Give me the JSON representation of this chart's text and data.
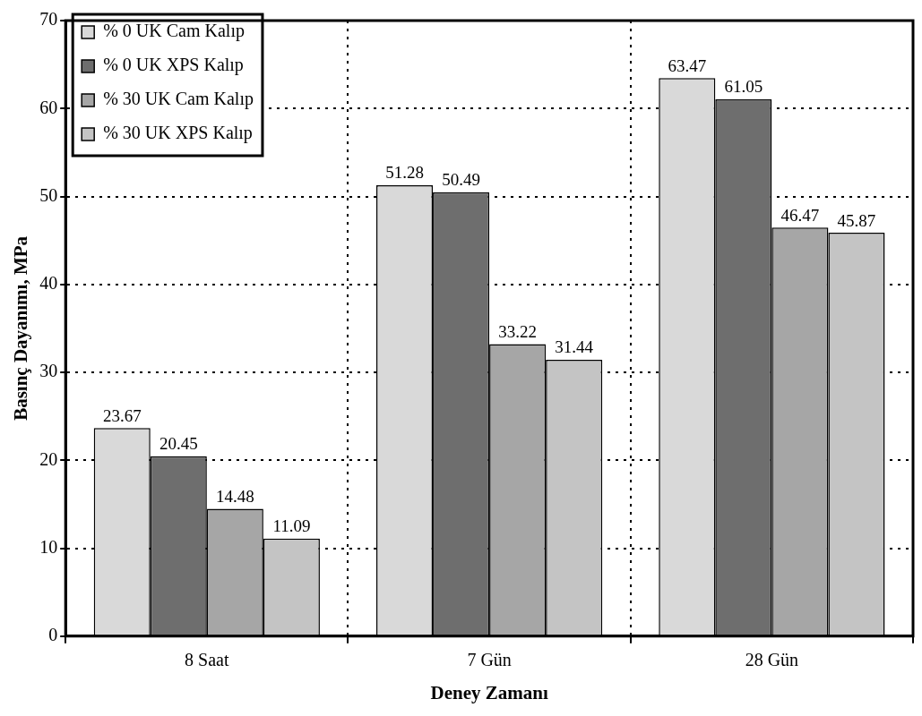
{
  "chart_data": {
    "type": "bar",
    "xlabel": "Deney Zamanı",
    "ylabel": "Basınç Dayanımı, MPa",
    "categories": [
      "8 Saat",
      "7 Gün",
      "28 Gün"
    ],
    "series": [
      {
        "name": "% 0 UK Cam Kalıp",
        "color": "#d9d9d9",
        "values": [
          23.67,
          51.28,
          63.47
        ]
      },
      {
        "name": "% 0 UK XPS Kalıp",
        "color": "#6e6e6e",
        "values": [
          20.45,
          50.49,
          61.05
        ]
      },
      {
        "name": "% 30 UK Cam Kalıp",
        "color": "#a6a6a6",
        "values": [
          14.48,
          33.22,
          46.47
        ]
      },
      {
        "name": "% 30 UK XPS Kalıp",
        "color": "#c4c4c4",
        "values": [
          11.09,
          31.44,
          45.87
        ]
      }
    ],
    "ylim": [
      0,
      70
    ],
    "yticks": [
      0,
      10,
      20,
      30,
      40,
      50,
      60,
      70
    ],
    "grid": true,
    "legend": "top left",
    "data_labels": true
  }
}
